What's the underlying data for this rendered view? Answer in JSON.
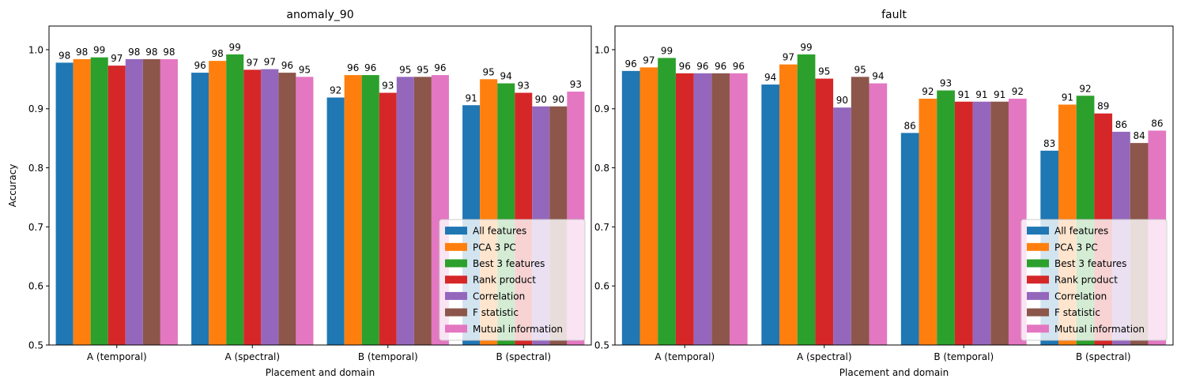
{
  "chart_data": [
    {
      "type": "bar",
      "title": "anomaly_90",
      "xlabel": "Placement and domain",
      "ylabel": "Accuracy",
      "ylim": [
        0.5,
        1.04
      ],
      "yticks": [
        "0.5",
        "0.6",
        "0.7",
        "0.8",
        "0.9",
        "1.0"
      ],
      "categories": [
        "A (temporal)",
        "A (spectral)",
        "B (temporal)",
        "B (spectral)"
      ],
      "legend_position": "lower right",
      "series": [
        {
          "name": "All features",
          "values": [
            0.978,
            0.961,
            0.919,
            0.906
          ],
          "labels": [
            "98",
            "96",
            "92",
            "91"
          ]
        },
        {
          "name": "PCA 3 PC",
          "values": [
            0.984,
            0.981,
            0.957,
            0.95
          ],
          "labels": [
            "98",
            "98",
            "96",
            "95"
          ]
        },
        {
          "name": "Best 3 features",
          "values": [
            0.987,
            0.992,
            0.957,
            0.943
          ],
          "labels": [
            "99",
            "99",
            "96",
            "94"
          ]
        },
        {
          "name": "Rank product",
          "values": [
            0.973,
            0.966,
            0.927,
            0.927
          ],
          "labels": [
            "97",
            "97",
            "93",
            "93"
          ]
        },
        {
          "name": "Correlation",
          "values": [
            0.984,
            0.967,
            0.954,
            0.904
          ],
          "labels": [
            "98",
            "97",
            "95",
            "90"
          ]
        },
        {
          "name": "F statistic",
          "values": [
            0.984,
            0.961,
            0.954,
            0.904
          ],
          "labels": [
            "98",
            "96",
            "95",
            "90"
          ]
        },
        {
          "name": "Mutual information",
          "values": [
            0.984,
            0.954,
            0.957,
            0.929
          ],
          "labels": [
            "98",
            "95",
            "96",
            "93"
          ]
        }
      ]
    },
    {
      "type": "bar",
      "title": "fault",
      "xlabel": "Placement and domain",
      "ylabel": "",
      "ylim": [
        0.5,
        1.04
      ],
      "yticks": [
        "0.5",
        "0.6",
        "0.7",
        "0.8",
        "0.9",
        "1.0"
      ],
      "categories": [
        "A (temporal)",
        "A (spectral)",
        "B (temporal)",
        "B (spectral)"
      ],
      "legend_position": "lower right",
      "series": [
        {
          "name": "All features",
          "values": [
            0.964,
            0.941,
            0.859,
            0.829
          ],
          "labels": [
            "96",
            "94",
            "86",
            "83"
          ]
        },
        {
          "name": "PCA 3 PC",
          "values": [
            0.97,
            0.975,
            0.917,
            0.907
          ],
          "labels": [
            "97",
            "97",
            "92",
            "91"
          ]
        },
        {
          "name": "Best 3 features",
          "values": [
            0.986,
            0.992,
            0.931,
            0.922
          ],
          "labels": [
            "99",
            "99",
            "93",
            "92"
          ]
        },
        {
          "name": "Rank product",
          "values": [
            0.96,
            0.951,
            0.912,
            0.892
          ],
          "labels": [
            "96",
            "95",
            "91",
            "89"
          ]
        },
        {
          "name": "Correlation",
          "values": [
            0.96,
            0.902,
            0.912,
            0.861
          ],
          "labels": [
            "96",
            "90",
            "91",
            "86"
          ]
        },
        {
          "name": "F statistic",
          "values": [
            0.96,
            0.954,
            0.912,
            0.842
          ],
          "labels": [
            "96",
            "95",
            "91",
            "84"
          ]
        },
        {
          "name": "Mutual information",
          "values": [
            0.96,
            0.943,
            0.917,
            0.863
          ],
          "labels": [
            "96",
            "94",
            "92",
            "86"
          ]
        }
      ]
    }
  ],
  "colors": [
    "#1f77b4",
    "#ff7f0e",
    "#2ca02c",
    "#d62728",
    "#9467bd",
    "#8c564b",
    "#e377c2"
  ]
}
